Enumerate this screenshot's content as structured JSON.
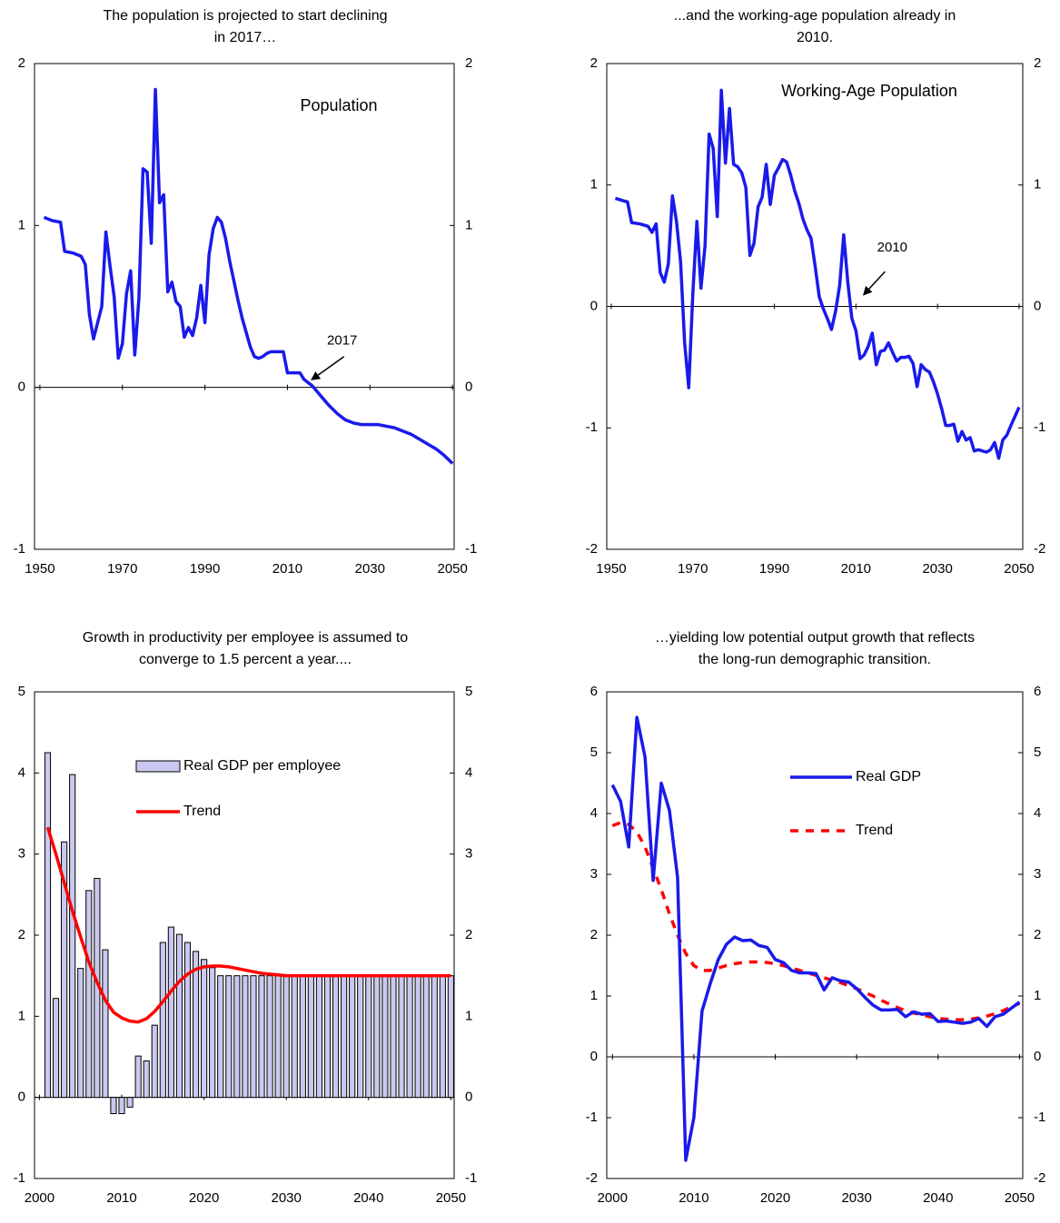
{
  "chart_data": [
    {
      "type": "line",
      "title": [
        "The population is projected to start declining",
        "in 2017…"
      ],
      "xlim": [
        1948.7,
        2050.4
      ],
      "xticks": [
        1950,
        1970,
        1990,
        2010,
        2030,
        2050
      ],
      "ylim": [
        -1,
        2
      ],
      "yticks": [
        -1,
        0,
        1,
        2
      ],
      "y2lim": [
        -1,
        2
      ],
      "y2ticks": [
        -1,
        0,
        1,
        2
      ],
      "x": [
        1951,
        1953,
        1955,
        1956,
        1958,
        1960,
        1961,
        1962,
        1963,
        1965,
        1966,
        1967,
        1968,
        1969,
        1970,
        1971,
        1972,
        1973,
        1974,
        1975,
        1976,
        1977,
        1978,
        1979,
        1980,
        1981,
        1982,
        1983,
        1984,
        1985,
        1986,
        1987,
        1988,
        1989,
        1990,
        1991,
        1992,
        1993,
        1994,
        1995,
        1996,
        1997,
        1998,
        1999,
        2000,
        2001,
        2002,
        2003,
        2004,
        2005,
        2006,
        2007,
        2008,
        2009,
        2010,
        2011,
        2012,
        2013,
        2014,
        2015,
        2016,
        2017,
        2018,
        2019,
        2020,
        2022,
        2024,
        2026,
        2028,
        2030,
        2032,
        2034,
        2036,
        2038,
        2040,
        2042,
        2044,
        2046,
        2048,
        2050
      ],
      "series": [
        {
          "name": "Population",
          "color": "#1a1aeb",
          "values": [
            1.05,
            1.03,
            1.02,
            0.84,
            0.83,
            0.81,
            0.76,
            0.45,
            0.3,
            0.5,
            0.96,
            0.75,
            0.56,
            0.18,
            0.27,
            0.58,
            0.72,
            0.2,
            0.55,
            1.35,
            1.33,
            0.89,
            1.84,
            1.14,
            1.19,
            0.59,
            0.65,
            0.53,
            0.5,
            0.31,
            0.37,
            0.32,
            0.43,
            0.63,
            0.4,
            0.82,
            0.98,
            1.05,
            1.02,
            0.92,
            0.78,
            0.66,
            0.54,
            0.43,
            0.34,
            0.25,
            0.19,
            0.18,
            0.19,
            0.21,
            0.22,
            0.22,
            0.22,
            0.22,
            0.09,
            0.09,
            0.09,
            0.09,
            0.05,
            0.03,
            0.01,
            -0.02,
            -0.05,
            -0.08,
            -0.11,
            -0.16,
            -0.2,
            -0.22,
            -0.23,
            -0.23,
            -0.23,
            -0.24,
            -0.25,
            -0.27,
            -0.29,
            -0.32,
            -0.35,
            -0.38,
            -0.42,
            -0.47
          ]
        }
      ],
      "annotations": [
        {
          "text": "2017",
          "x": 2016,
          "y": 0.05
        }
      ]
    },
    {
      "type": "line",
      "title": [
        "...and the working-age population already in",
        "2010."
      ],
      "xlim": [
        1948.9,
        2050.9
      ],
      "xticks": [
        1950,
        1970,
        1990,
        2010,
        2030,
        2050
      ],
      "ylim": [
        -2,
        2
      ],
      "yticks": [
        -2,
        -1,
        0,
        1,
        2
      ],
      "y2lim": [
        -2,
        2
      ],
      "y2ticks": [
        -2,
        -1,
        0,
        1,
        2
      ],
      "x": [
        1951,
        1953,
        1954,
        1955,
        1957,
        1959,
        1960,
        1961,
        1962,
        1963,
        1964,
        1965,
        1966,
        1967,
        1968,
        1969,
        1970,
        1971,
        1972,
        1973,
        1974,
        1975,
        1976,
        1977,
        1978,
        1979,
        1980,
        1981,
        1982,
        1983,
        1984,
        1985,
        1986,
        1987,
        1988,
        1989,
        1990,
        1991,
        1992,
        1993,
        1994,
        1995,
        1996,
        1997,
        1998,
        1999,
        2000,
        2001,
        2002,
        2003,
        2004,
        2005,
        2006,
        2007,
        2008,
        2009,
        2010,
        2011,
        2012,
        2013,
        2014,
        2015,
        2016,
        2017,
        2018,
        2019,
        2020,
        2021,
        2022,
        2023,
        2024,
        2025,
        2026,
        2027,
        2028,
        2029,
        2030,
        2031,
        2032,
        2033,
        2034,
        2035,
        2036,
        2037,
        2038,
        2039,
        2040,
        2041,
        2042,
        2043,
        2044,
        2045,
        2046,
        2047,
        2048,
        2050
      ],
      "series": [
        {
          "name": "Working-Age Population",
          "color": "#1a1aeb",
          "values": [
            0.89,
            0.87,
            0.86,
            0.69,
            0.68,
            0.66,
            0.61,
            0.68,
            0.28,
            0.2,
            0.35,
            0.91,
            0.7,
            0.37,
            -0.3,
            -0.67,
            0.1,
            0.7,
            0.15,
            0.5,
            1.42,
            1.3,
            0.74,
            1.78,
            1.18,
            1.63,
            1.17,
            1.15,
            1.1,
            0.98,
            0.42,
            0.52,
            0.82,
            0.9,
            1.17,
            0.84,
            1.08,
            1.14,
            1.21,
            1.19,
            1.08,
            0.95,
            0.85,
            0.72,
            0.63,
            0.56,
            0.33,
            0.08,
            -0.02,
            -0.1,
            -0.19,
            -0.04,
            0.17,
            0.59,
            0.2,
            -0.1,
            -0.2,
            -0.43,
            -0.4,
            -0.33,
            -0.22,
            -0.48,
            -0.37,
            -0.36,
            -0.3,
            -0.38,
            -0.45,
            -0.42,
            -0.42,
            -0.41,
            -0.47,
            -0.66,
            -0.48,
            -0.52,
            -0.54,
            -0.62,
            -0.72,
            -0.84,
            -0.98,
            -0.98,
            -0.97,
            -1.11,
            -1.03,
            -1.1,
            -1.08,
            -1.19,
            -1.18,
            -1.19,
            -1.2,
            -1.18,
            -1.12,
            -1.25,
            -1.1,
            -1.06,
            -0.98,
            -0.83
          ]
        }
      ],
      "annotations": [
        {
          "text": "2010",
          "x": 2012,
          "y": 0.1
        }
      ]
    },
    {
      "type": "bar",
      "title": [
        "Growth in productivity per employee is assumed to",
        "converge to 1.5 percent a year...."
      ],
      "xlim": [
        1999.4,
        2050.4
      ],
      "xticks": [
        2000,
        2010,
        2020,
        2030,
        2040,
        2050
      ],
      "ylim": [
        -1,
        5
      ],
      "yticks": [
        -1,
        0,
        1,
        2,
        3,
        4,
        5
      ],
      "y2lim": [
        -1,
        5
      ],
      "y2ticks": [
        -1,
        0,
        1,
        2,
        3,
        4,
        5
      ],
      "x": [
        2001,
        2002,
        2003,
        2004,
        2005,
        2006,
        2007,
        2008,
        2009,
        2010,
        2011,
        2012,
        2013,
        2014,
        2015,
        2016,
        2017,
        2018,
        2019,
        2020,
        2021,
        2022,
        2023,
        2024,
        2025,
        2026,
        2027,
        2028,
        2029,
        2030,
        2031,
        2032,
        2033,
        2034,
        2035,
        2036,
        2037,
        2038,
        2039,
        2040,
        2041,
        2042,
        2043,
        2044,
        2045,
        2046,
        2047,
        2048,
        2049,
        2050
      ],
      "series": [
        {
          "name": "Real GDP per employee",
          "type": "bar",
          "color": "#c8c8f0",
          "values": [
            4.25,
            1.22,
            3.15,
            3.98,
            1.59,
            2.55,
            2.7,
            1.82,
            -0.2,
            -0.2,
            -0.12,
            0.51,
            0.45,
            0.89,
            1.91,
            2.1,
            2.01,
            1.91,
            1.8,
            1.7,
            1.6,
            1.5,
            1.5,
            1.5,
            1.5,
            1.5,
            1.5,
            1.5,
            1.5,
            1.5,
            1.5,
            1.5,
            1.5,
            1.5,
            1.5,
            1.5,
            1.5,
            1.5,
            1.5,
            1.5,
            1.5,
            1.5,
            1.5,
            1.5,
            1.5,
            1.5,
            1.5,
            1.5,
            1.5,
            1.5
          ]
        },
        {
          "name": "Trend",
          "type": "line",
          "color": "#ff0000",
          "values": [
            3.33,
            3.0,
            2.65,
            2.3,
            1.98,
            1.67,
            1.42,
            1.2,
            1.05,
            0.98,
            0.94,
            0.93,
            0.97,
            1.06,
            1.18,
            1.31,
            1.43,
            1.52,
            1.58,
            1.61,
            1.62,
            1.62,
            1.61,
            1.59,
            1.57,
            1.55,
            1.53,
            1.52,
            1.51,
            1.5,
            1.5,
            1.5,
            1.5,
            1.5,
            1.5,
            1.5,
            1.5,
            1.5,
            1.5,
            1.5,
            1.5,
            1.5,
            1.5,
            1.5,
            1.5,
            1.5,
            1.5,
            1.5,
            1.5,
            1.5
          ]
        }
      ]
    },
    {
      "type": "line",
      "title": [
        "…yielding low potential output growth that reflects",
        "the long-run demographic transition."
      ],
      "xlim": [
        1999.3,
        2050.4
      ],
      "xticks": [
        2000,
        2010,
        2020,
        2030,
        2040,
        2050
      ],
      "ylim": [
        -2,
        6
      ],
      "yticks": [
        -2,
        -1,
        0,
        1,
        2,
        3,
        4,
        5,
        6
      ],
      "y2lim": [
        -2,
        6
      ],
      "y2ticks": [
        -2,
        -1,
        0,
        1,
        2,
        3,
        4,
        5,
        6
      ],
      "x": [
        2000,
        2001,
        2002,
        2003,
        2004,
        2005,
        2006,
        2007,
        2008,
        2009,
        2010,
        2011,
        2012,
        2013,
        2014,
        2015,
        2016,
        2017,
        2018,
        2019,
        2020,
        2021,
        2022,
        2023,
        2024,
        2025,
        2026,
        2027,
        2028,
        2029,
        2030,
        2031,
        2032,
        2033,
        2034,
        2035,
        2036,
        2037,
        2038,
        2039,
        2040,
        2041,
        2042,
        2043,
        2044,
        2045,
        2046,
        2047,
        2048,
        2049,
        2050
      ],
      "series": [
        {
          "name": "Trend",
          "color": "#ff0000",
          "line_style": "dashed",
          "values": [
            3.8,
            3.85,
            3.82,
            3.7,
            3.45,
            3.1,
            2.75,
            2.35,
            2.0,
            1.7,
            1.5,
            1.42,
            1.42,
            1.46,
            1.5,
            1.53,
            1.55,
            1.56,
            1.56,
            1.55,
            1.53,
            1.5,
            1.46,
            1.42,
            1.38,
            1.34,
            1.3,
            1.26,
            1.22,
            1.17,
            1.12,
            1.06,
            1.0,
            0.93,
            0.87,
            0.81,
            0.76,
            0.72,
            0.69,
            0.66,
            0.63,
            0.62,
            0.61,
            0.61,
            0.62,
            0.64,
            0.67,
            0.71,
            0.76,
            0.82,
            0.88
          ]
        },
        {
          "name": "Real GDP",
          "color": "#1a1aeb",
          "values": [
            4.47,
            4.2,
            3.45,
            5.58,
            4.93,
            2.9,
            4.5,
            4.05,
            2.95,
            -1.7,
            -1.0,
            0.75,
            1.2,
            1.6,
            1.85,
            1.97,
            1.91,
            1.92,
            1.83,
            1.8,
            1.6,
            1.55,
            1.42,
            1.38,
            1.38,
            1.37,
            1.1,
            1.3,
            1.25,
            1.23,
            1.12,
            0.98,
            0.85,
            0.77,
            0.77,
            0.78,
            0.66,
            0.74,
            0.7,
            0.71,
            0.58,
            0.59,
            0.57,
            0.55,
            0.57,
            0.63,
            0.5,
            0.66,
            0.7,
            0.8,
            0.9
          ]
        }
      ]
    }
  ]
}
